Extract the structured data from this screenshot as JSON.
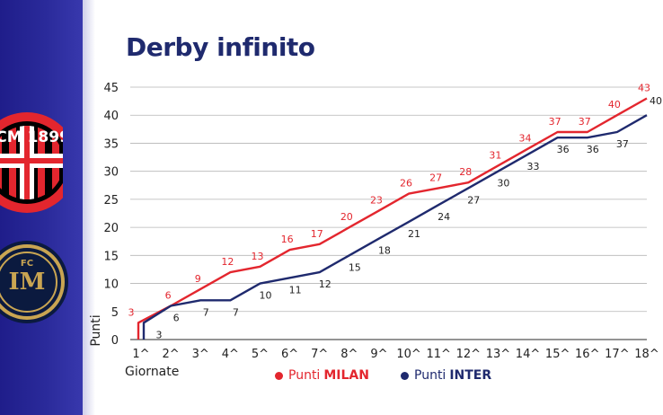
{
  "title": "Derby infinito",
  "legend": {
    "milan_prefix": "Punti",
    "milan_team": "MILAN",
    "inter_prefix": "Punti",
    "inter_team": "INTER"
  },
  "colors": {
    "milan": "#e3262e",
    "inter": "#1f2a6e",
    "background_band": "#2a2a9a"
  },
  "logos": {
    "milan": "ACM 1899",
    "inter": "FC IM"
  },
  "chart_data": {
    "type": "line",
    "title": "Derby infinito",
    "xlabel": "Giornate",
    "ylabel": "Punti",
    "categories": [
      "1^",
      "2^",
      "3^",
      "4^",
      "5^",
      "6^",
      "7^",
      "8^",
      "9^",
      "10^",
      "11^",
      "12^",
      "13^",
      "14^",
      "15^",
      "16^",
      "17^",
      "18^"
    ],
    "ylim": [
      0,
      45
    ],
    "yticks": [
      0,
      5,
      10,
      15,
      20,
      25,
      30,
      35,
      40,
      45
    ],
    "grid": true,
    "legend_position": "bottom",
    "series": [
      {
        "name": "Punti MILAN",
        "values": [
          3,
          6,
          9,
          12,
          13,
          16,
          17,
          20,
          23,
          26,
          27,
          28,
          31,
          34,
          37,
          37,
          40,
          43
        ]
      },
      {
        "name": "Punti INTER",
        "values": [
          3,
          6,
          7,
          7,
          10,
          11,
          12,
          15,
          18,
          21,
          24,
          27,
          30,
          33,
          36,
          36,
          37,
          40
        ]
      }
    ]
  }
}
